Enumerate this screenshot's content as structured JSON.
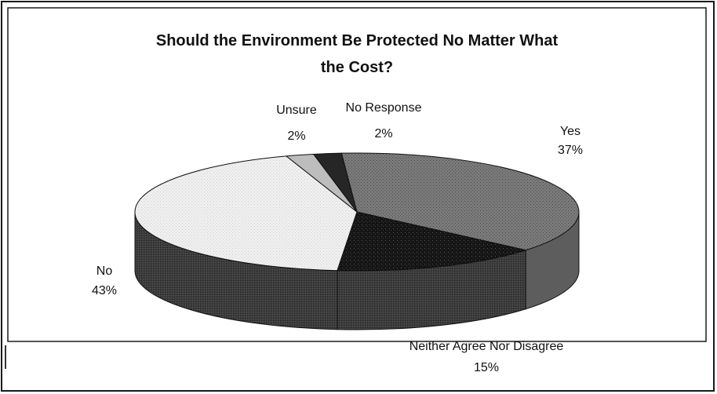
{
  "chart_data": {
    "type": "pie",
    "title": "Should the Environment Be Protected No Matter What the Cost?",
    "title_lines": [
      "Should the Environment Be Protected No Matter What",
      "the Cost?"
    ],
    "three_d": true,
    "slices": [
      {
        "name": "Yes",
        "value": 37,
        "label": "37%",
        "color": "#6e6e6e"
      },
      {
        "name": "Neither Agree Nor Disagree",
        "display_name": "Neither Agree Nor Disagree",
        "value": 15,
        "label": "15%",
        "color": "#1f1f1f"
      },
      {
        "name": "No",
        "value": 43,
        "label": "43%",
        "color": "#ececec"
      },
      {
        "name": "Unsure",
        "value": 2,
        "label": "2%",
        "color": "#bdbdbd"
      },
      {
        "name": "No Response",
        "value": 2,
        "label": "2%",
        "color": "#2a2a2a"
      }
    ]
  }
}
